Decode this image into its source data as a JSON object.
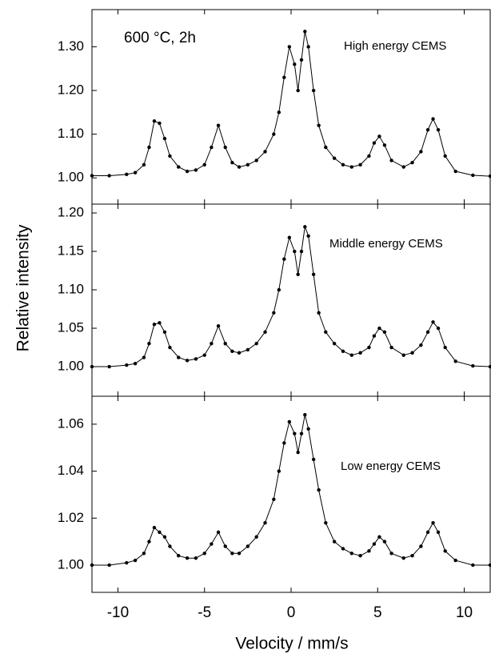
{
  "chart_data": [
    {
      "type": "line",
      "annotation": "600 °C, 2h",
      "label": "High energy CEMS",
      "color": "#000000",
      "xlim": [
        -11.5,
        11.5
      ],
      "ylim": [
        0.94,
        1.385
      ],
      "yticks": [
        {
          "value": 1.0,
          "label": "1.00"
        },
        {
          "value": 1.1,
          "label": "1.10"
        },
        {
          "value": 1.2,
          "label": "1.20"
        },
        {
          "value": 1.3,
          "label": "1.30"
        }
      ],
      "x": [
        -11.5,
        -10.5,
        -9.5,
        -9,
        -8.5,
        -8.2,
        -7.9,
        -7.6,
        -7.3,
        -7,
        -6.5,
        -6,
        -5.5,
        -5,
        -4.6,
        -4.2,
        -3.8,
        -3.4,
        -3,
        -2.5,
        -2,
        -1.5,
        -1,
        -0.7,
        -0.4,
        -0.1,
        0.2,
        0.4,
        0.6,
        0.8,
        1.0,
        1.3,
        1.6,
        2,
        2.5,
        3,
        3.5,
        4,
        4.5,
        4.8,
        5.1,
        5.4,
        5.8,
        6.5,
        7,
        7.5,
        7.9,
        8.2,
        8.5,
        8.9,
        9.5,
        10.5,
        11.5
      ],
      "values": [
        1.005,
        1.005,
        1.008,
        1.012,
        1.03,
        1.07,
        1.13,
        1.125,
        1.09,
        1.05,
        1.025,
        1.015,
        1.018,
        1.03,
        1.07,
        1.12,
        1.07,
        1.035,
        1.025,
        1.03,
        1.04,
        1.06,
        1.1,
        1.15,
        1.23,
        1.3,
        1.26,
        1.2,
        1.27,
        1.335,
        1.3,
        1.2,
        1.12,
        1.07,
        1.045,
        1.03,
        1.025,
        1.03,
        1.05,
        1.08,
        1.095,
        1.075,
        1.04,
        1.025,
        1.035,
        1.06,
        1.11,
        1.135,
        1.11,
        1.05,
        1.015,
        1.006,
        1.004
      ]
    },
    {
      "type": "line",
      "label": "Middle energy CEMS",
      "ylabel": "Relative intensity",
      "color": "#000000",
      "xlim": [
        -11.5,
        11.5
      ],
      "ylim": [
        0.9615,
        1.2115
      ],
      "yticks": [
        {
          "value": 1.0,
          "label": "1.00"
        },
        1.05,
        {
          "value": 1.1,
          "label": "1.10"
        },
        1.15,
        {
          "value": 1.2,
          "label": "1.20"
        }
      ],
      "x": [
        -11.5,
        -10.5,
        -9.5,
        -9,
        -8.5,
        -8.2,
        -7.9,
        -7.6,
        -7.3,
        -7,
        -6.5,
        -6,
        -5.5,
        -5,
        -4.6,
        -4.2,
        -3.8,
        -3.4,
        -3,
        -2.5,
        -2,
        -1.5,
        -1,
        -0.7,
        -0.4,
        -0.1,
        0.2,
        0.4,
        0.6,
        0.8,
        1.0,
        1.3,
        1.6,
        2,
        2.5,
        3,
        3.5,
        4,
        4.5,
        4.8,
        5.1,
        5.4,
        5.8,
        6.5,
        7,
        7.5,
        7.9,
        8.2,
        8.5,
        8.9,
        9.5,
        10.5,
        11.5
      ],
      "values": [
        1.0,
        1.0,
        1.002,
        1.004,
        1.012,
        1.03,
        1.055,
        1.057,
        1.045,
        1.025,
        1.012,
        1.008,
        1.01,
        1.015,
        1.03,
        1.053,
        1.03,
        1.02,
        1.018,
        1.022,
        1.03,
        1.045,
        1.07,
        1.1,
        1.14,
        1.168,
        1.15,
        1.12,
        1.15,
        1.182,
        1.17,
        1.12,
        1.07,
        1.045,
        1.03,
        1.02,
        1.015,
        1.018,
        1.025,
        1.04,
        1.05,
        1.045,
        1.025,
        1.015,
        1.018,
        1.028,
        1.045,
        1.058,
        1.05,
        1.025,
        1.007,
        1.001,
        1.0
      ]
    },
    {
      "type": "line",
      "label": "Low energy CEMS",
      "xlabel": "Velocity / mm/s",
      "color": "#000000",
      "xlim": [
        -11.5,
        11.5
      ],
      "ylim": [
        0.9884,
        1.0719
      ],
      "xticks": [
        -10,
        -5,
        0,
        5,
        10
      ],
      "yticks": [
        {
          "value": 1.0,
          "label": "1.00"
        },
        1.02,
        1.04,
        1.06
      ],
      "x": [
        -11.5,
        -10.5,
        -9.5,
        -9,
        -8.5,
        -8.2,
        -7.9,
        -7.6,
        -7.3,
        -7,
        -6.5,
        -6,
        -5.5,
        -5,
        -4.6,
        -4.2,
        -3.8,
        -3.4,
        -3,
        -2.5,
        -2,
        -1.5,
        -1,
        -0.7,
        -0.4,
        -0.1,
        0.2,
        0.4,
        0.6,
        0.8,
        1.0,
        1.3,
        1.6,
        2,
        2.5,
        3,
        3.5,
        4,
        4.5,
        4.8,
        5.1,
        5.4,
        5.8,
        6.5,
        7,
        7.5,
        7.9,
        8.2,
        8.5,
        8.9,
        9.5,
        10.5,
        11.5
      ],
      "values": [
        1.0,
        1.0,
        1.001,
        1.002,
        1.005,
        1.01,
        1.016,
        1.014,
        1.012,
        1.008,
        1.004,
        1.003,
        1.003,
        1.005,
        1.009,
        1.014,
        1.008,
        1.005,
        1.005,
        1.008,
        1.012,
        1.018,
        1.028,
        1.04,
        1.052,
        1.061,
        1.056,
        1.048,
        1.056,
        1.064,
        1.058,
        1.045,
        1.032,
        1.018,
        1.01,
        1.007,
        1.005,
        1.004,
        1.006,
        1.009,
        1.012,
        1.01,
        1.005,
        1.003,
        1.004,
        1.008,
        1.014,
        1.018,
        1.014,
        1.006,
        1.002,
        1.0,
        1.0
      ]
    }
  ]
}
